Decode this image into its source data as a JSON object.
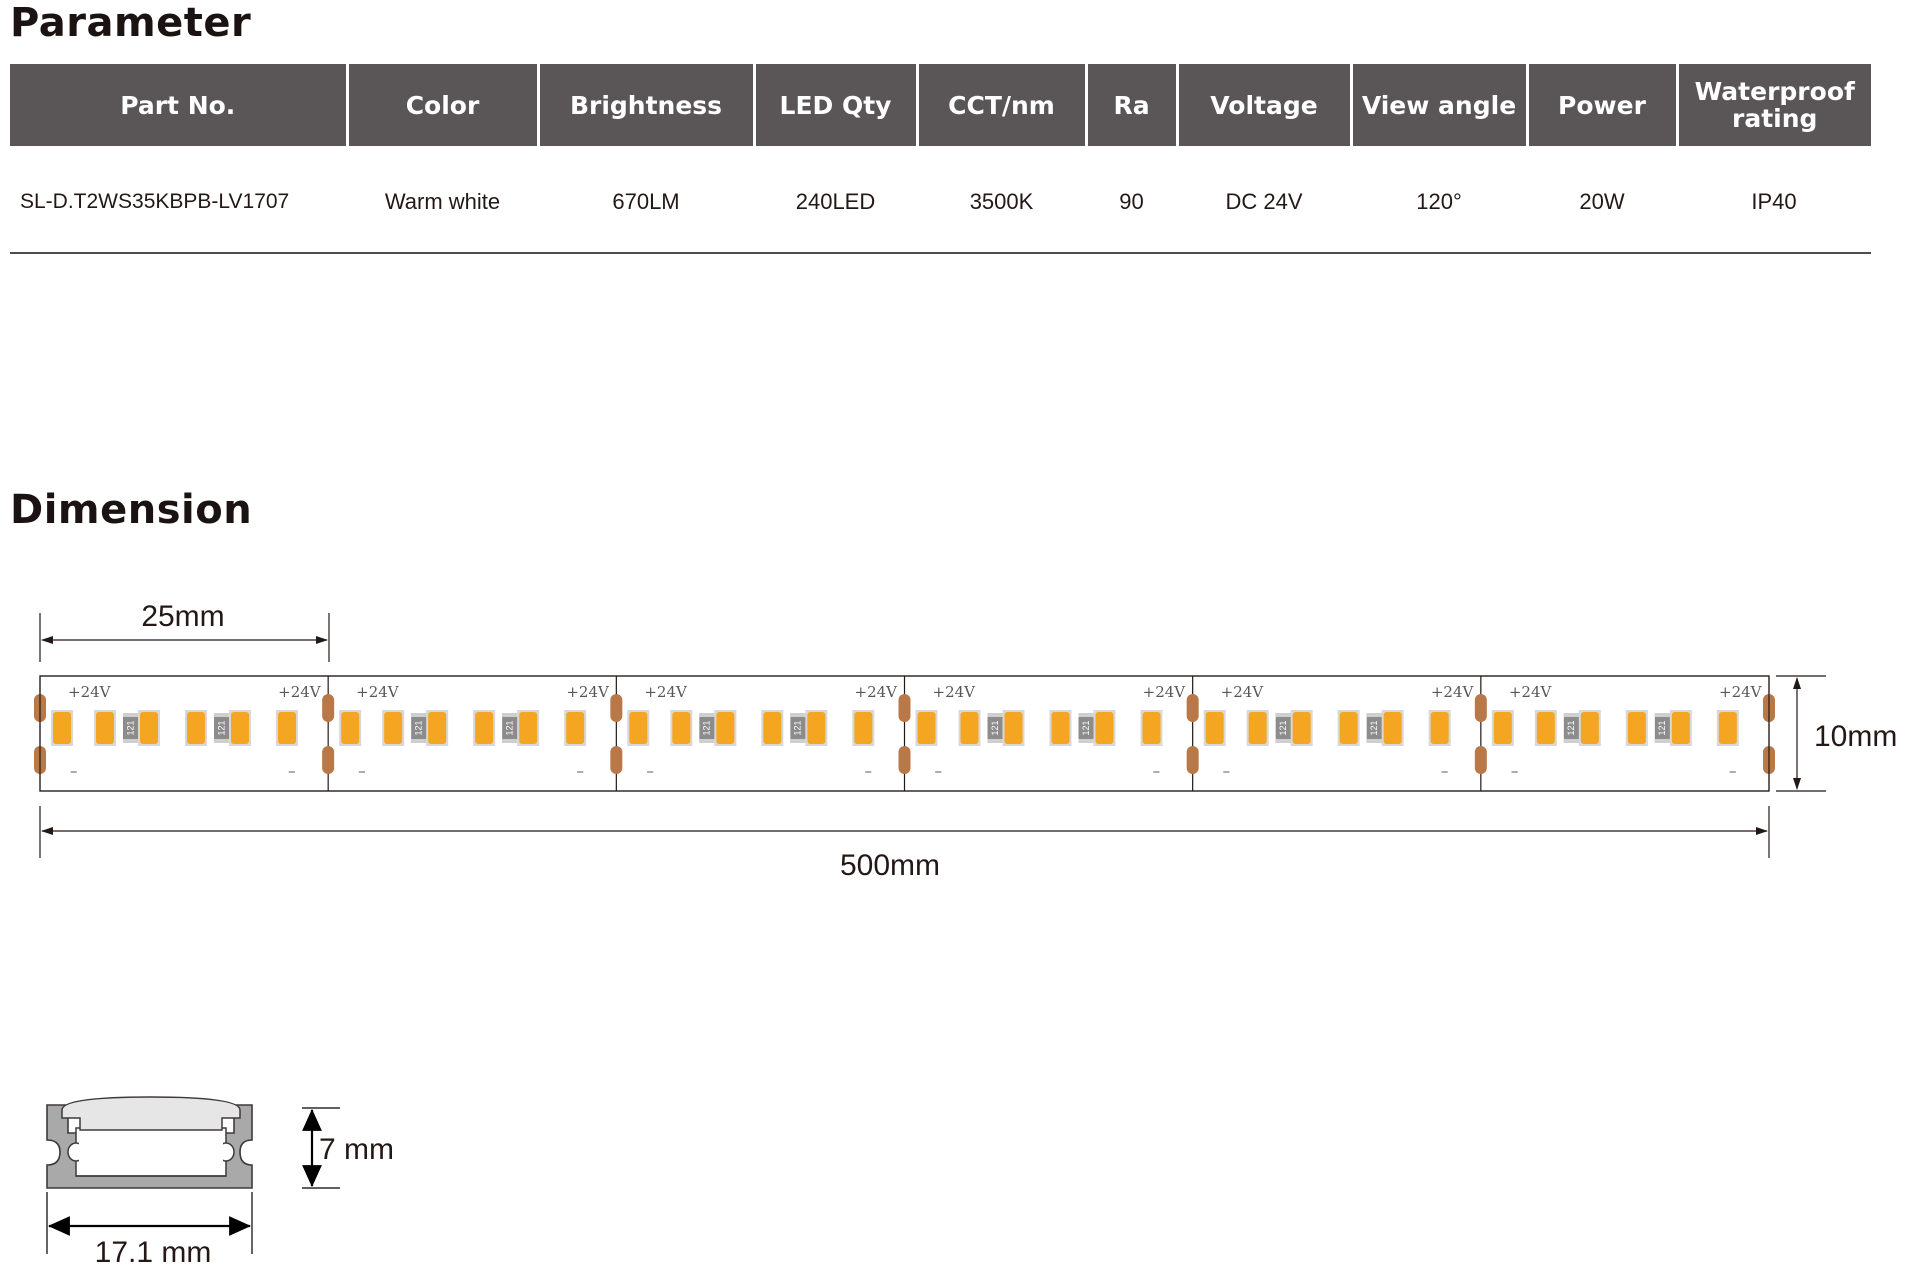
{
  "sections": {
    "parameter_title": "Parameter",
    "dimension_title": "Dimension"
  },
  "table": {
    "headers": [
      "Part No.",
      "Color",
      "Brightness",
      "LED Qty",
      "CCT/nm",
      "Ra",
      "Voltage",
      "View angle",
      "Power",
      "Waterproof rating"
    ],
    "row": [
      "SL-D.T2WS35KBPB-LV1707",
      "Warm white",
      "670LM",
      "240LED",
      "3500K",
      "90",
      "DC 24V",
      "120°",
      "20W",
      "IP40"
    ]
  },
  "strip": {
    "segment_length_label": "25mm",
    "width_label": "10mm",
    "total_length_label": "500mm",
    "positive_label": "+24V",
    "negative_label": "–",
    "resistor_label": "121",
    "segments_shown": 6
  },
  "profile": {
    "height_label": "7 mm",
    "width_label": "17.1 mm"
  },
  "colors": {
    "header_bg": "#5a5556",
    "led": "#f4a522",
    "solder_pad": "#b87848",
    "resistor": "#8c8c8c",
    "profile_body": "#a9a9a9"
  }
}
